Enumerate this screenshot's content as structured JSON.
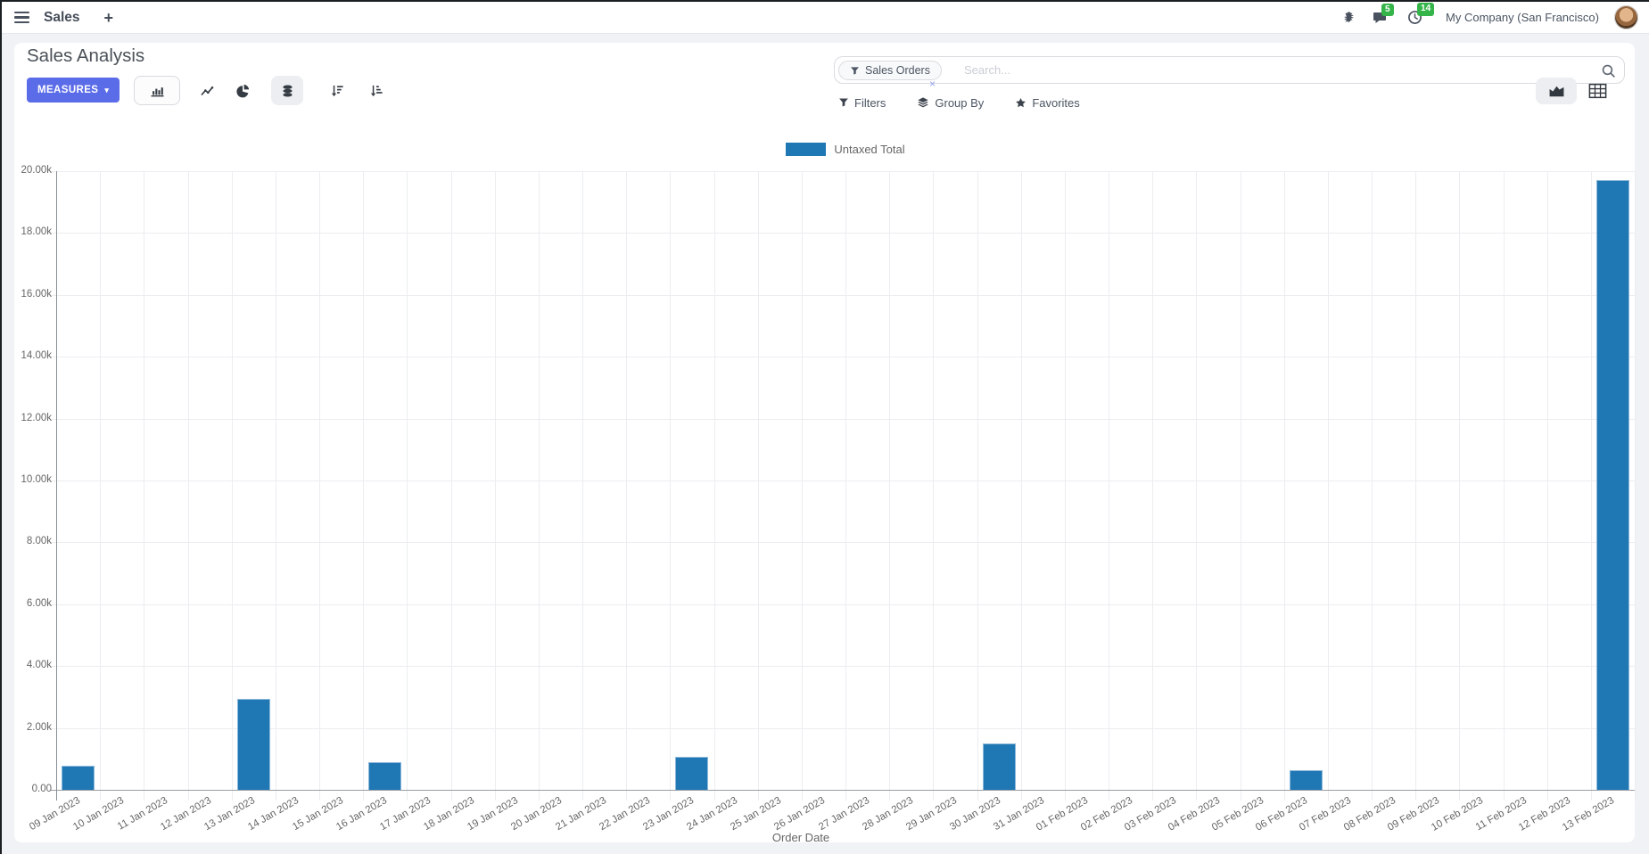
{
  "navbar": {
    "app_name": "Sales",
    "plus_label": "+",
    "message_count": "5",
    "activity_count": "14",
    "company": "My Company (San Francisco)"
  },
  "control": {
    "title": "Sales Analysis",
    "measures": "MEASURES",
    "measures_caret": "▾",
    "facet_label": "Sales Orders",
    "facet_remove": "×",
    "search_placeholder": "Search...",
    "filters": "Filters",
    "group_by": "Group By",
    "favorites": "Favorites"
  },
  "icons": {
    "navbar": [
      "hamburger-icon",
      "bug-icon",
      "chat-icon",
      "clock-icon"
    ],
    "toolbar": [
      "bar-chart-icon",
      "line-chart-icon",
      "pie-chart-icon",
      "stacked-icon",
      "sort-desc-icon",
      "sort-asc-icon"
    ],
    "search": [
      "filter-funnel-icon",
      "search-icon"
    ],
    "filters_row": [
      "filter-funnel-icon",
      "layers-icon",
      "star-icon"
    ],
    "view_switcher": [
      "area-chart-icon",
      "pivot-grid-icon"
    ]
  },
  "chart_data": {
    "type": "bar",
    "title": "",
    "xlabel": "Order Date",
    "ylabel": "",
    "ylim": [
      0,
      20000
    ],
    "grid": true,
    "legend_position": "top",
    "y_ticks": [
      "0.00",
      "2.00k",
      "4.00k",
      "6.00k",
      "8.00k",
      "10.00k",
      "12.00k",
      "14.00k",
      "16.00k",
      "18.00k",
      "20.00k"
    ],
    "categories": [
      "09 Jan 2023",
      "10 Jan 2023",
      "11 Jan 2023",
      "12 Jan 2023",
      "13 Jan 2023",
      "14 Jan 2023",
      "15 Jan 2023",
      "16 Jan 2023",
      "17 Jan 2023",
      "18 Jan 2023",
      "19 Jan 2023",
      "20 Jan 2023",
      "21 Jan 2023",
      "22 Jan 2023",
      "23 Jan 2023",
      "24 Jan 2023",
      "25 Jan 2023",
      "26 Jan 2023",
      "27 Jan 2023",
      "28 Jan 2023",
      "29 Jan 2023",
      "30 Jan 2023",
      "31 Jan 2023",
      "01 Feb 2023",
      "02 Feb 2023",
      "03 Feb 2023",
      "04 Feb 2023",
      "05 Feb 2023",
      "06 Feb 2023",
      "07 Feb 2023",
      "08 Feb 2023",
      "09 Feb 2023",
      "10 Feb 2023",
      "11 Feb 2023",
      "12 Feb 2023",
      "13 Feb 2023"
    ],
    "series": [
      {
        "name": "Untaxed Total",
        "color": "#1f77b4",
        "values": [
          790,
          0,
          0,
          0,
          2930,
          0,
          0,
          900,
          0,
          0,
          0,
          0,
          0,
          0,
          1070,
          0,
          0,
          0,
          0,
          0,
          0,
          1510,
          0,
          0,
          0,
          0,
          0,
          0,
          640,
          0,
          0,
          0,
          0,
          0,
          0,
          19700
        ]
      }
    ]
  }
}
